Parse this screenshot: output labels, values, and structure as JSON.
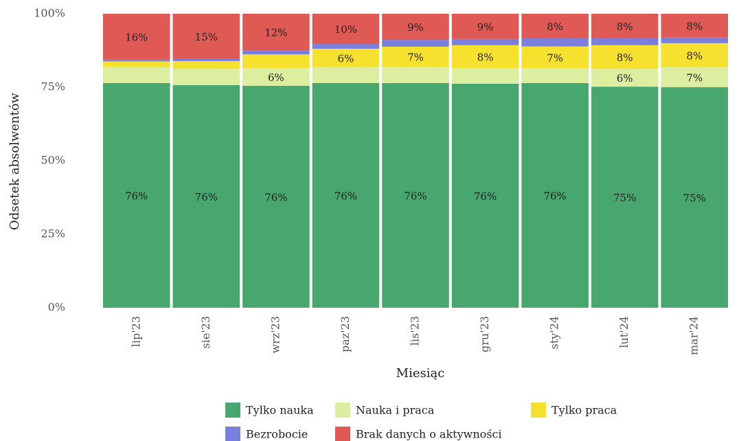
{
  "chart_data": {
    "type": "stacked_bar",
    "x_label": "Miesiąc",
    "y_label": "Odsetek absolwentów",
    "categories": [
      "lip'23",
      "sie'23",
      "wrz'23",
      "paz'23",
      "lis'23",
      "gru'23",
      "sty'24",
      "lut'24",
      "mar'24"
    ],
    "ylim": [
      0,
      100
    ],
    "yticks": [
      {
        "value": 0,
        "label": "0%"
      },
      {
        "value": 25,
        "label": "25%"
      },
      {
        "value": 50,
        "label": "50%"
      },
      {
        "value": 75,
        "label": "75%"
      },
      {
        "value": 100,
        "label": "100%"
      }
    ],
    "series": [
      {
        "name": "Tylko nauka",
        "color": "#48a76e",
        "values": [
          76.4,
          75.7,
          75.5,
          76.4,
          76.4,
          76.2,
          76.4,
          75.2,
          75.0
        ],
        "value_labels": [
          "76%",
          "76%",
          "76%",
          "76%",
          "76%",
          "76%",
          "76%",
          "75%",
          "75%"
        ]
      },
      {
        "name": "Nauka i praca",
        "color": "#dcefa0",
        "values": [
          5.4,
          5.6,
          6.0,
          5.4,
          5.6,
          5.3,
          5.1,
          6.1,
          6.8
        ],
        "value_labels": [
          null,
          null,
          "6%",
          null,
          null,
          null,
          null,
          "6%",
          "7%"
        ]
      },
      {
        "name": "Tylko praca",
        "color": "#f5e12e",
        "values": [
          2.0,
          2.6,
          4.7,
          6.3,
          6.8,
          7.8,
          7.4,
          8.0,
          8.2
        ],
        "value_labels": [
          null,
          null,
          null,
          "6%",
          "7%",
          "8%",
          "7%",
          "8%",
          "8%"
        ]
      },
      {
        "name": "Bezrobocie",
        "color": "#7b7fdc",
        "values": [
          0.6,
          0.7,
          1.4,
          1.6,
          2.3,
          2.1,
          2.7,
          2.4,
          1.9
        ],
        "value_labels": [
          null,
          null,
          null,
          null,
          null,
          null,
          null,
          null,
          null
        ]
      },
      {
        "name": "Brak danych o aktywności",
        "color": "#e05a55",
        "values": [
          15.6,
          15.4,
          12.4,
          10.3,
          8.9,
          8.6,
          8.4,
          8.3,
          8.1
        ],
        "value_labels": [
          "16%",
          "15%",
          "12%",
          "10%",
          "9%",
          "9%",
          "8%",
          "8%",
          "8%"
        ]
      }
    ]
  }
}
